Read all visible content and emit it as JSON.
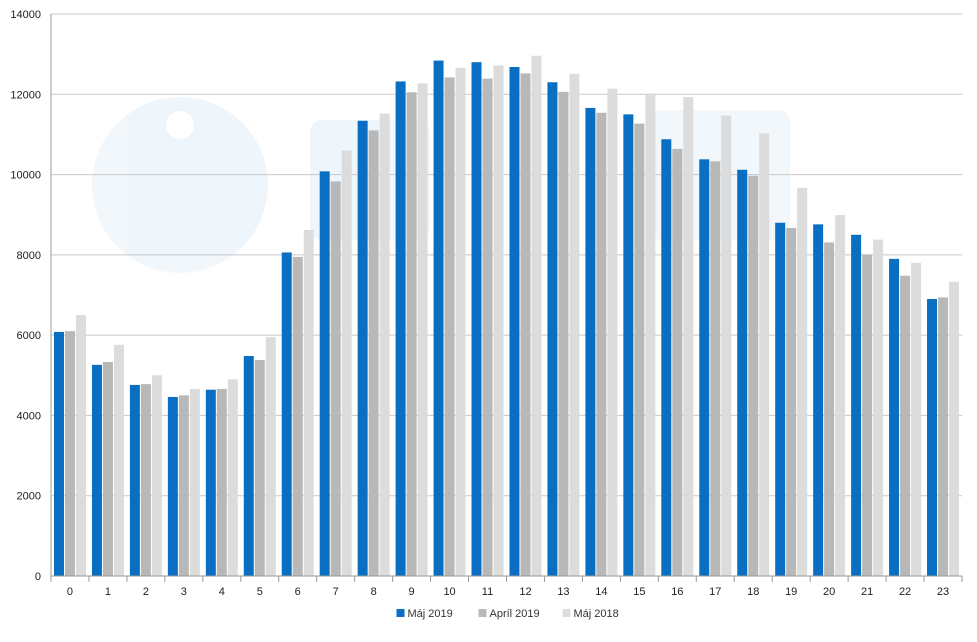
{
  "chart_data": {
    "type": "bar",
    "title": "",
    "xlabel": "",
    "ylabel": "",
    "ylim": [
      0,
      14000
    ],
    "yticks": [
      0,
      2000,
      4000,
      6000,
      8000,
      10000,
      12000,
      14000
    ],
    "grid": true,
    "legend_position": "bottom",
    "categories": [
      "0",
      "1",
      "2",
      "3",
      "4",
      "5",
      "6",
      "7",
      "8",
      "9",
      "10",
      "11",
      "12",
      "13",
      "14",
      "15",
      "16",
      "17",
      "18",
      "19",
      "20",
      "21",
      "22",
      "23"
    ],
    "series": [
      {
        "name": "Máj 2019",
        "color": "#0a6fc2",
        "values": [
          6080,
          5260,
          4760,
          4460,
          4640,
          5480,
          8060,
          10080,
          11340,
          12320,
          12840,
          12800,
          12680,
          12300,
          11660,
          11500,
          10880,
          10380,
          10120,
          8800,
          8760,
          8500,
          7900,
          6900
        ]
      },
      {
        "name": "Apríl 2019",
        "color": "#b8b8b8",
        "values": [
          6100,
          5330,
          4780,
          4500,
          4660,
          5380,
          7950,
          9830,
          11100,
          12050,
          12420,
          12390,
          12520,
          12060,
          11540,
          11270,
          10640,
          10330,
          9970,
          8670,
          8310,
          8010,
          7480,
          6940
        ]
      },
      {
        "name": "Máj 2018",
        "color": "#dcdcdc",
        "values": [
          6500,
          5760,
          5000,
          4660,
          4900,
          5950,
          8620,
          10600,
          11520,
          12270,
          12660,
          12720,
          12960,
          12510,
          12140,
          11980,
          11930,
          11470,
          11030,
          9670,
          8990,
          8380,
          7800,
          7330
        ]
      }
    ]
  }
}
